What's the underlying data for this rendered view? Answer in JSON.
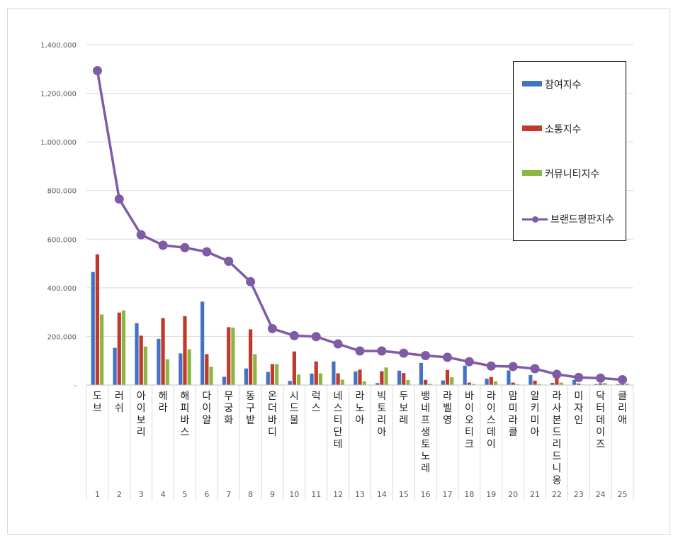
{
  "chart_data": {
    "type": "bar",
    "title": "",
    "xlabel": "",
    "ylabel": "",
    "ylim": [
      0,
      1400000
    ],
    "yticks": [
      "-",
      "200,000",
      "400,000",
      "600,000",
      "800,000",
      "1,000,000",
      "1,200,000",
      "1,400,000"
    ],
    "grid": true,
    "legend_position": "right",
    "ranks": [
      "1",
      "2",
      "3",
      "4",
      "5",
      "6",
      "7",
      "8",
      "9",
      "10",
      "11",
      "12",
      "13",
      "14",
      "15",
      "16",
      "17",
      "18",
      "19",
      "20",
      "21",
      "22",
      "23",
      "24",
      "25"
    ],
    "categories": [
      "도브",
      "러쉬",
      "아이보리",
      "헤라",
      "해피바스",
      "다이알",
      "무궁화",
      "동구밭",
      "온더바디",
      "시드물",
      "럭스",
      "네스티단테",
      "라노아",
      "빅토리아",
      "두보레",
      "뱅네프생토노레",
      "라벨영",
      "바이오티크",
      "라이스데이",
      "맘미라클",
      "알키미아",
      "라사본드리드니옹",
      "미자인",
      "닥터데이즈",
      "클리애"
    ],
    "series": [
      {
        "name": "참여지수",
        "type": "bar",
        "color": "#4472c4",
        "values": [
          465000,
          153000,
          254000,
          190000,
          130000,
          343000,
          34000,
          68000,
          54000,
          17000,
          47000,
          97000,
          56000,
          8000,
          59000,
          91000,
          19000,
          80000,
          26000,
          60000,
          41000,
          9000,
          21000,
          4000,
          3000
        ]
      },
      {
        "name": "소통지수",
        "type": "bar",
        "color": "#c0392b",
        "values": [
          538000,
          298000,
          203000,
          275000,
          283000,
          127000,
          238000,
          229000,
          86000,
          138000,
          97000,
          48000,
          63000,
          57000,
          49000,
          21000,
          62000,
          10000,
          33000,
          10000,
          18000,
          27000,
          6000,
          7000,
          4000
        ]
      },
      {
        "name": "커뮤니티지수",
        "type": "bar",
        "color": "#8db542",
        "values": [
          290000,
          307000,
          158000,
          106000,
          147000,
          75000,
          236000,
          127000,
          86000,
          43000,
          48000,
          22000,
          15000,
          72000,
          20000,
          5000,
          32000,
          4000,
          15000,
          3000,
          4000,
          10000,
          2000,
          8000,
          6000
        ]
      },
      {
        "name": "브랜드평판지수",
        "type": "line",
        "color": "#7f5ba6",
        "values": [
          1293000,
          765000,
          618000,
          575000,
          565000,
          548000,
          509000,
          425000,
          232000,
          203000,
          199000,
          169000,
          140000,
          140000,
          131000,
          121000,
          114000,
          96000,
          78000,
          76000,
          67000,
          44000,
          31000,
          28000,
          22000
        ]
      }
    ]
  }
}
